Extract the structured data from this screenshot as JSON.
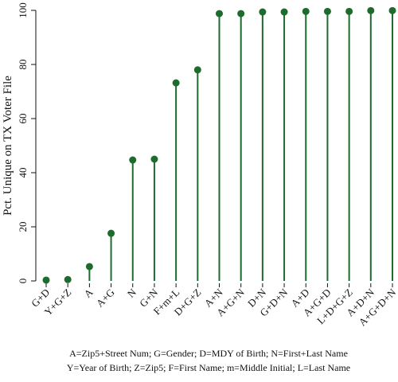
{
  "chart_data": {
    "type": "lollipop",
    "y_label": "Pct. Unique on TX Voter File",
    "categories": [
      "G+D",
      "Y+G+Z",
      "A",
      "A+G",
      "N",
      "G+N",
      "F+m+L",
      "D+G+Z",
      "A+N",
      "A+G+N",
      "D+N",
      "G+D+N",
      "A+D",
      "A+G+D",
      "L+D+G+Z",
      "A+D+N",
      "A+G+D+N"
    ],
    "values": [
      0.3,
      0.5,
      5.3,
      17.6,
      44.7,
      45,
      73.2,
      78,
      98.8,
      98.8,
      99.4,
      99.4,
      99.6,
      99.6,
      99.6,
      99.9,
      99.9
    ],
    "color": "#1e6b2e",
    "ylim": [
      0,
      100
    ],
    "yticks": [
      0,
      20,
      40,
      60,
      80,
      100
    ],
    "notes": [
      "A=Zip5+Street Num; G=Gender; D=MDY of Birth; N=First+Last Name",
      "Y=Year of Birth; Z=Zip5; F=First Name; m=Middle Initial; L=Last Name"
    ]
  }
}
